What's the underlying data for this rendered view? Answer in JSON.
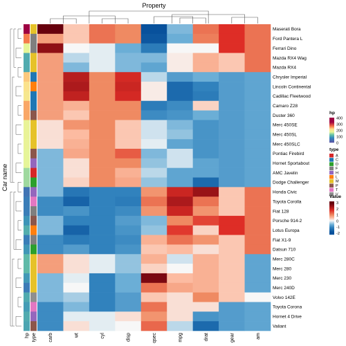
{
  "chart_data": {
    "type": "heatmap",
    "title": "",
    "column_title": "Property",
    "row_title": "Car name",
    "columns": [
      "carb",
      "wt",
      "cyl",
      "disp",
      "qsec",
      "mpg",
      "drat",
      "gear",
      "am"
    ],
    "rows": [
      "Maserati Bora",
      "Ford Pantera L",
      "Ferrari Dino",
      "Mazda RX4 Wag",
      "Mazda RX4",
      "Chrysler Imperial",
      "Lincoln Continental",
      "Cadillac Fleetwood",
      "Camaro Z28",
      "Duster 360",
      "Merc 450SE",
      "Merc 450SL",
      "Merc 450SLC",
      "Pontiac Firebird",
      "Hornet Sportabout",
      "AMC Javelin",
      "Dodge Challenger",
      "Honda Civic",
      "Toyota Corolla",
      "Fiat 128",
      "Porsche 914-2",
      "Lotus Europa",
      "Fiat X1-9",
      "Datsun 710",
      "Merc 280C",
      "Merc 280",
      "Merc 230",
      "Merc 240D",
      "Volvo 142E",
      "Toyota Corona",
      "Hornet 4 Drive",
      "Valiant"
    ],
    "values": [
      [
        3.5,
        0.4,
        1.2,
        1.0,
        -2.0,
        -0.6,
        1.2,
        1.8,
        1.2
      ],
      [
        0.8,
        0.4,
        1.2,
        1.0,
        -1.9,
        -0.7,
        1.1,
        1.8,
        1.2
      ],
      [
        2.6,
        0.0,
        -0.1,
        -0.7,
        -1.3,
        0.0,
        0.0,
        1.8,
        1.2
      ],
      [
        0.8,
        -0.3,
        -0.1,
        -0.6,
        -0.6,
        0.1,
        0.6,
        0.4,
        1.2
      ],
      [
        0.8,
        -0.6,
        -0.1,
        -0.6,
        -0.8,
        0.1,
        0.6,
        0.4,
        1.2
      ],
      [
        0.8,
        2.2,
        1.0,
        1.9,
        -0.3,
        -0.9,
        -0.7,
        -0.9,
        -0.8
      ],
      [
        0.8,
        2.3,
        1.0,
        2.0,
        0.1,
        -1.6,
        -1.2,
        -0.9,
        -0.8
      ],
      [
        0.8,
        2.1,
        1.0,
        1.9,
        0.1,
        -1.6,
        -1.3,
        -0.9,
        -0.8
      ],
      [
        0.8,
        0.6,
        1.0,
        1.0,
        -1.3,
        -1.1,
        0.3,
        -0.9,
        -0.8
      ],
      [
        0.8,
        0.4,
        1.0,
        1.0,
        -1.1,
        -1.0,
        -0.7,
        -0.9,
        -0.8
      ],
      [
        0.2,
        0.9,
        1.0,
        0.4,
        -0.2,
        -0.6,
        -1.0,
        -0.9,
        -0.8
      ],
      [
        0.2,
        0.5,
        1.0,
        0.4,
        -0.2,
        -0.5,
        -1.0,
        -0.9,
        -0.8
      ],
      [
        0.2,
        0.6,
        1.0,
        0.4,
        -0.1,
        -0.8,
        -1.0,
        -0.9,
        -0.8
      ],
      [
        -0.6,
        0.7,
        1.0,
        1.4,
        -0.6,
        -0.2,
        -1.0,
        -0.9,
        -0.8
      ],
      [
        -0.6,
        0.2,
        1.0,
        1.0,
        -0.5,
        -0.2,
        -0.8,
        -0.9,
        -0.8
      ],
      [
        -0.6,
        0.2,
        1.0,
        0.6,
        -0.3,
        -0.8,
        -0.8,
        -0.9,
        -0.8
      ],
      [
        -0.6,
        0.3,
        1.0,
        0.7,
        -0.5,
        -0.8,
        -1.6,
        -0.9,
        -0.8
      ],
      [
        -0.6,
        -1.4,
        -1.2,
        -1.2,
        0.9,
        2.0,
        2.5,
        0.4,
        1.2
      ],
      [
        -1.1,
        -1.7,
        -1.2,
        -1.3,
        1.2,
        2.3,
        1.2,
        0.4,
        1.2
      ],
      [
        -1.1,
        -1.0,
        -1.2,
        -1.1,
        0.9,
        2.0,
        0.9,
        0.4,
        1.2
      ],
      [
        -0.6,
        -1.2,
        -1.2,
        -0.9,
        -0.6,
        1.0,
        1.6,
        1.8,
        1.2
      ],
      [
        -0.6,
        -1.7,
        -1.2,
        -1.0,
        -0.5,
        1.7,
        0.3,
        1.8,
        1.2
      ],
      [
        -1.1,
        -1.3,
        -1.2,
        -1.1,
        0.6,
        1.2,
        0.9,
        0.4,
        1.2
      ],
      [
        -1.1,
        -0.9,
        -1.2,
        -1.0,
        0.4,
        0.5,
        0.2,
        0.4,
        1.2
      ],
      [
        0.8,
        0.2,
        -0.1,
        -0.5,
        0.6,
        -0.2,
        0.6,
        0.4,
        -0.8
      ],
      [
        0.8,
        0.2,
        -0.1,
        -0.5,
        0.3,
        0.0,
        0.6,
        0.4,
        -0.8
      ],
      [
        -0.6,
        -0.1,
        -1.2,
        -0.7,
        2.8,
        0.5,
        0.6,
        0.4,
        -0.8
      ],
      [
        -0.6,
        0.0,
        -1.2,
        -0.7,
        1.2,
        0.7,
        0.6,
        0.4,
        -0.8
      ],
      [
        -0.6,
        -0.4,
        -1.2,
        -0.9,
        0.4,
        0.2,
        1.0,
        0.4,
        0.0
      ],
      [
        -1.1,
        -0.6,
        -1.2,
        -0.9,
        1.2,
        0.2,
        0.2,
        -0.9,
        -0.8
      ],
      [
        -1.1,
        -0.1,
        -0.1,
        0.2,
        0.9,
        0.2,
        -1.0,
        -0.9,
        -0.8
      ],
      [
        -1.1,
        0.2,
        -0.1,
        -0.0,
        1.3,
        -0.3,
        -1.6,
        -0.9,
        -0.8
      ]
    ],
    "annotations": {
      "hp": [
        335,
        264,
        175,
        110,
        110,
        230,
        215,
        205,
        245,
        245,
        180,
        180,
        180,
        175,
        175,
        150,
        150,
        52,
        65,
        66,
        91,
        113,
        66,
        93,
        123,
        123,
        95,
        62,
        109,
        97,
        110,
        105
      ],
      "type": [
        "M",
        "F",
        "F",
        "M",
        "M",
        "C",
        "L",
        "C",
        "C",
        "P",
        "M",
        "M",
        "M",
        "P",
        "H",
        "A",
        "D",
        "H",
        "T",
        "F",
        "P",
        "L",
        "F",
        "D",
        "M",
        "M",
        "M",
        "M",
        "V",
        "T",
        "H",
        "P"
      ]
    },
    "legends": {
      "hp": {
        "title": "hp",
        "ticks": [
          "400",
          "300",
          "200",
          "100",
          "0"
        ],
        "range": [
          0,
          400
        ]
      },
      "type": {
        "title": "type",
        "items": [
          "A",
          "C",
          "D",
          "F",
          "H",
          "L",
          "M",
          "P",
          "T",
          "V"
        ]
      },
      "value": {
        "title": "Value",
        "ticks": [
          "3",
          "2",
          "1",
          "0",
          "-1",
          "-2"
        ],
        "range": [
          -2.5,
          3.5
        ]
      }
    }
  },
  "colors": {
    "type": {
      "A": "#d62728",
      "C": "#1f77b4",
      "D": "#2ca02c",
      "F": "#7f7f7f",
      "H": "#9467bd",
      "L": "#ff7f0e",
      "M": "#e6c229",
      "P": "#8c564b",
      "T": "#e377c2",
      "V": "#8f8f8f"
    }
  }
}
